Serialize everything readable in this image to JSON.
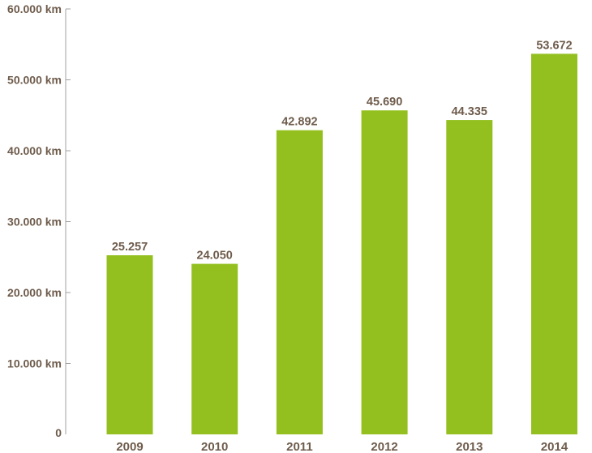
{
  "chart_data": {
    "type": "bar",
    "title": "",
    "xlabel": "",
    "ylabel": "",
    "categories": [
      "2009",
      "2010",
      "2011",
      "2012",
      "2013",
      "2014"
    ],
    "values": [
      25257,
      24050,
      42892,
      45690,
      44335,
      53672
    ],
    "value_labels": [
      "25.257",
      "24.050",
      "42.892",
      "45.690",
      "44.335",
      "53.672"
    ],
    "ylim": [
      0,
      60000
    ],
    "y_ticks": [
      0,
      10000,
      20000,
      30000,
      40000,
      50000,
      60000
    ],
    "y_tick_labels": [
      "0",
      "10.000 km",
      "20.000 km",
      "30.000 km",
      "40.000 km",
      "50.000 km",
      "60.000 km"
    ],
    "grid": false,
    "legend": "none",
    "colors": {
      "bar": "#93c01f",
      "text": "#6e5b4b",
      "axis": "#a0a0a0"
    }
  }
}
